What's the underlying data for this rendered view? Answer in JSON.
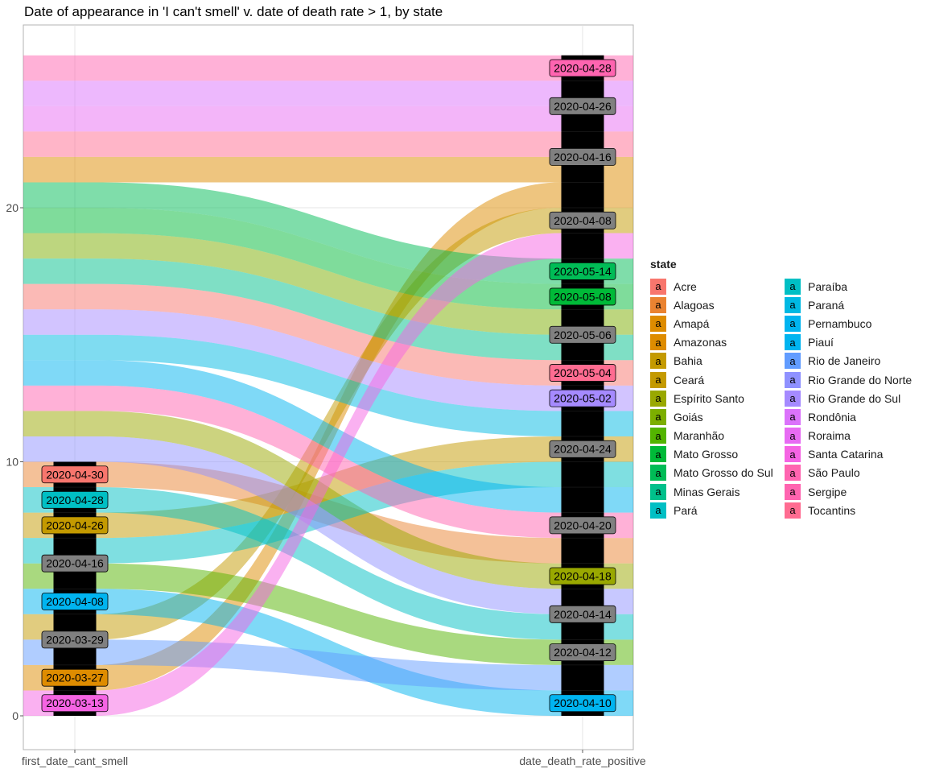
{
  "chart_data": {
    "type": "alluvial",
    "title": "Date of appearance in 'I can't smell' v. date of death rate > 1, by state",
    "axes": [
      "first_date_cant_smell",
      "date_death_rate_positive"
    ],
    "y_ticks": [
      0,
      10,
      20
    ],
    "ylim": [
      0,
      26
    ],
    "legend_title": "state",
    "legend_key_glyph": "a",
    "legend_placement": "right",
    "strata": [
      {
        "axis": "first_date_cant_smell",
        "start": 0,
        "end": 10,
        "labels": [
          {
            "label": "2020-03-13",
            "y": 0.5,
            "color": "#F564E3"
          },
          {
            "label": "2020-03-27",
            "y": 1.5,
            "color": "#DE8C00"
          },
          {
            "label": "2020-03-29",
            "y": 3,
            "color": "#808080"
          },
          {
            "label": "2020-04-08",
            "y": 4.5,
            "color": "#00B4F0"
          },
          {
            "label": "2020-04-16",
            "y": 6,
            "color": "#808080"
          },
          {
            "label": "2020-04-26",
            "y": 7.5,
            "color": "#C49A00"
          },
          {
            "label": "2020-04-28",
            "y": 8.5,
            "color": "#00BFC4"
          },
          {
            "label": "2020-04-30",
            "y": 9.5,
            "color": "#F8766D"
          }
        ]
      },
      {
        "axis": "date_death_rate_positive",
        "start": 0,
        "end": 26,
        "labels": [
          {
            "label": "2020-04-10",
            "y": 0.5,
            "color": "#00B4F0"
          },
          {
            "label": "2020-04-12",
            "y": 2.5,
            "color": "#808080"
          },
          {
            "label": "2020-04-14",
            "y": 4,
            "color": "#808080"
          },
          {
            "label": "2020-04-18",
            "y": 5.5,
            "color": "#99A800"
          },
          {
            "label": "2020-04-20",
            "y": 7.5,
            "color": "#808080"
          },
          {
            "label": "2020-04-24",
            "y": 10.5,
            "color": "#808080"
          },
          {
            "label": "2020-05-02",
            "y": 12.5,
            "color": "#A58AFF"
          },
          {
            "label": "2020-05-04",
            "y": 13.5,
            "color": "#FF6C91"
          },
          {
            "label": "2020-05-06",
            "y": 15,
            "color": "#808080"
          },
          {
            "label": "2020-05-08",
            "y": 16.5,
            "color": "#00BA38"
          },
          {
            "label": "2020-05-14",
            "y": 17.5,
            "color": "#00BC56"
          },
          {
            "label": "2020-04-08",
            "y": 19.5,
            "color": "#808080"
          },
          {
            "label": "2020-04-16",
            "y": 22,
            "color": "#808080"
          },
          {
            "label": "2020-04-26",
            "y": 24,
            "color": "#808080"
          },
          {
            "label": "2020-04-28",
            "y": 25.5,
            "color": "#FF64B0"
          }
        ]
      }
    ],
    "series": [
      {
        "name": "Acre",
        "color": "#F8766D",
        "from": 16,
        "to": 13
      },
      {
        "name": "Alagoas",
        "color": "#EA8331",
        "from": 9,
        "to": 6
      },
      {
        "name": "Amapá",
        "color": "#DE8C00",
        "from": 1,
        "to": 20
      },
      {
        "name": "Amazonas",
        "color": "#DE8C00",
        "from": 21,
        "to": 21
      },
      {
        "name": "Bahia",
        "color": "#C49A00",
        "from": 7,
        "to": 10
      },
      {
        "name": "Ceará",
        "color": "#C49A00",
        "from": 3,
        "to": 19
      },
      {
        "name": "Espírito Santo",
        "color": "#99A800",
        "from": 11,
        "to": 5
      },
      {
        "name": "Goiás",
        "color": "#7CAE00",
        "from": 18,
        "to": 15
      },
      {
        "name": "Maranhão",
        "color": "#53B400",
        "from": 5,
        "to": 2
      },
      {
        "name": "Mato Grosso",
        "color": "#00BA38",
        "from": 19,
        "to": 16
      },
      {
        "name": "Mato Grosso do Sul",
        "color": "#00BC56",
        "from": 20,
        "to": 17
      },
      {
        "name": "Minas Gerais",
        "color": "#00C08B",
        "from": 17,
        "to": 14
      },
      {
        "name": "Pará",
        "color": "#00BFC4",
        "from": 6,
        "to": 9
      },
      {
        "name": "Paraíba",
        "color": "#00BFC4",
        "from": 8,
        "to": 3
      },
      {
        "name": "Paraná",
        "color": "#00B9E3",
        "from": 14,
        "to": 11
      },
      {
        "name": "Pernambuco",
        "color": "#00B4F0",
        "from": 4,
        "to": 0
      },
      {
        "name": "Piauí",
        "color": "#00B4F0",
        "from": 13,
        "to": 8
      },
      {
        "name": "Rio de Janeiro",
        "color": "#619CFF",
        "from": 2,
        "to": 1
      },
      {
        "name": "Rio Grande do Norte",
        "color": "#8F91FF",
        "from": 10,
        "to": 4
      },
      {
        "name": "Rio Grande do Sul",
        "color": "#A58AFF",
        "from": 15,
        "to": 12
      },
      {
        "name": "Rondônia",
        "color": "#DB72FB",
        "from": 24,
        "to": 24
      },
      {
        "name": "Roraima",
        "color": "#E76BF3",
        "from": 23,
        "to": 23
      },
      {
        "name": "Santa Catarina",
        "color": "#F564E3",
        "from": 0,
        "to": 18
      },
      {
        "name": "São Paulo",
        "color": "#FF64B0",
        "from": 12,
        "to": 7
      },
      {
        "name": "Sergipe",
        "color": "#FF64B0",
        "from": 25,
        "to": 25
      },
      {
        "name": "Tocantins",
        "color": "#FF6C91",
        "from": 22,
        "to": 22
      }
    ]
  }
}
